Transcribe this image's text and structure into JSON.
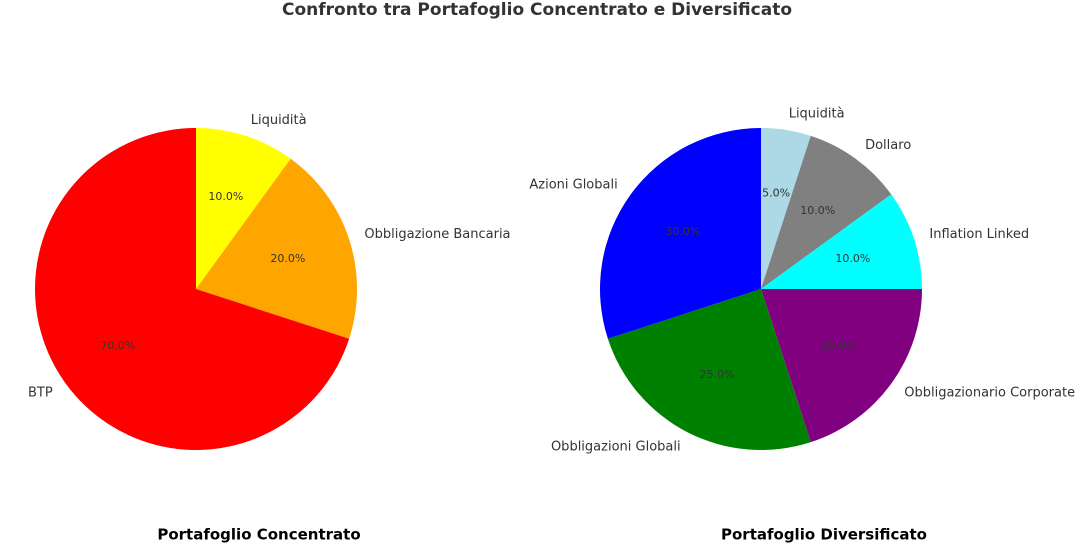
{
  "title": "Confronto tra Portafoglio Concentrato e Diversificato",
  "chart_data": [
    {
      "type": "pie",
      "title": "Portafoglio Concentrato",
      "categories": [
        "Liquidità",
        "Obbligazione Bancaria",
        "BTP"
      ],
      "values": [
        10,
        20,
        70
      ],
      "value_labels": [
        "10.0%",
        "20.0%",
        "70.0%"
      ],
      "colors": [
        "#ffff00",
        "#ffa500",
        "#ff0000"
      ]
    },
    {
      "type": "pie",
      "title": "Portafoglio Diversificato",
      "categories": [
        "Liquidità",
        "Dollaro",
        "Inflation Linked",
        "Obbligazionario Corporate",
        "Obbligazioni Globali",
        "Azioni Globali"
      ],
      "values": [
        5,
        10,
        10,
        20,
        25,
        30
      ],
      "value_labels": [
        "5.0%",
        "10.0%",
        "10.0%",
        "20.0%",
        "25.0%",
        "30.0%"
      ],
      "colors": [
        "#add8e6",
        "#808080",
        "#00ffff",
        "#800080",
        "#008000",
        "#0000ff"
      ]
    }
  ]
}
